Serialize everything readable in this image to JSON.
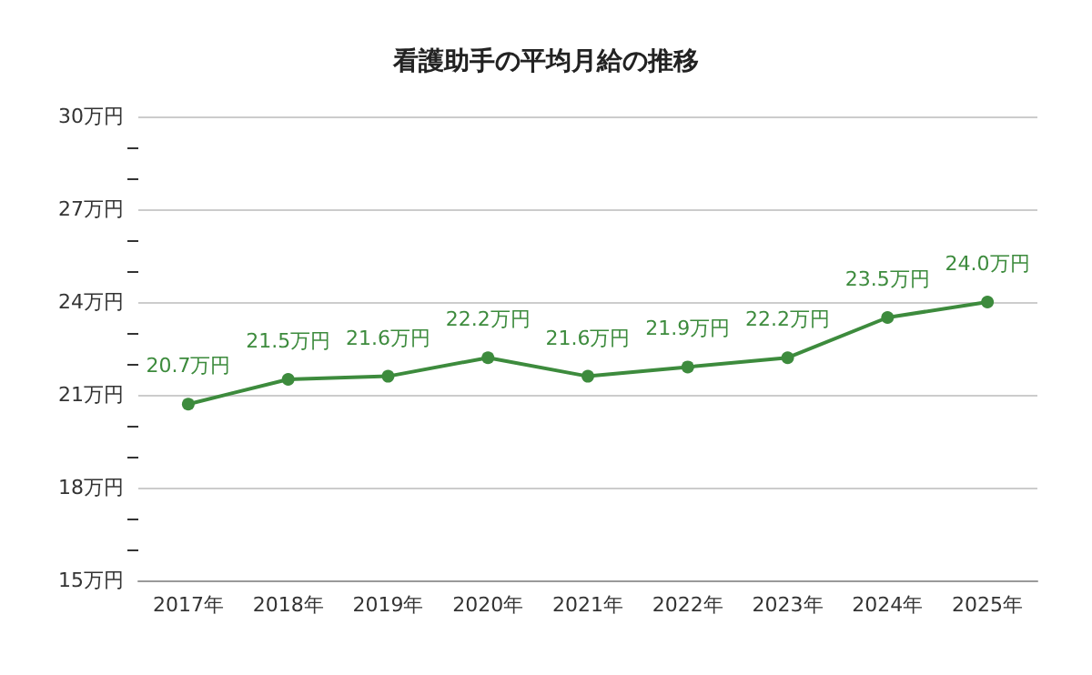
{
  "chart_data": {
    "type": "line",
    "title": "看護助手の平均月給の推移",
    "categories": [
      "2017年",
      "2018年",
      "2019年",
      "2020年",
      "2021年",
      "2022年",
      "2023年",
      "2024年",
      "2025年"
    ],
    "series": [
      {
        "color": "#3d8b3d",
        "values": [
          20.7,
          21.5,
          21.6,
          22.2,
          21.6,
          21.9,
          22.2,
          23.5,
          24.0
        ],
        "value_labels": [
          "20.7万円",
          "21.5万円",
          "21.6万円",
          "22.2万円",
          "21.6万円",
          "21.9万円",
          "22.2万円",
          "23.5万円",
          "24.0万円"
        ]
      }
    ],
    "ylim": [
      15,
      30
    ],
    "yticks": [
      {
        "value": 15,
        "label": "15万円"
      },
      {
        "value": 16,
        "label": null
      },
      {
        "value": 17,
        "label": null
      },
      {
        "value": 18,
        "label": "18万円"
      },
      {
        "value": 19,
        "label": null
      },
      {
        "value": 20,
        "label": null
      },
      {
        "value": 21,
        "label": "21万円"
      },
      {
        "value": 22,
        "label": null
      },
      {
        "value": 23,
        "label": null
      },
      {
        "value": 24,
        "label": "24万円"
      },
      {
        "value": 25,
        "label": null
      },
      {
        "value": 26,
        "label": null
      },
      {
        "value": 27,
        "label": "27万円"
      },
      {
        "value": 28,
        "label": null
      },
      {
        "value": 29,
        "label": null
      },
      {
        "value": 30,
        "label": "30万円"
      }
    ],
    "grid": "y",
    "marker": "circle",
    "line_style": "solid"
  }
}
